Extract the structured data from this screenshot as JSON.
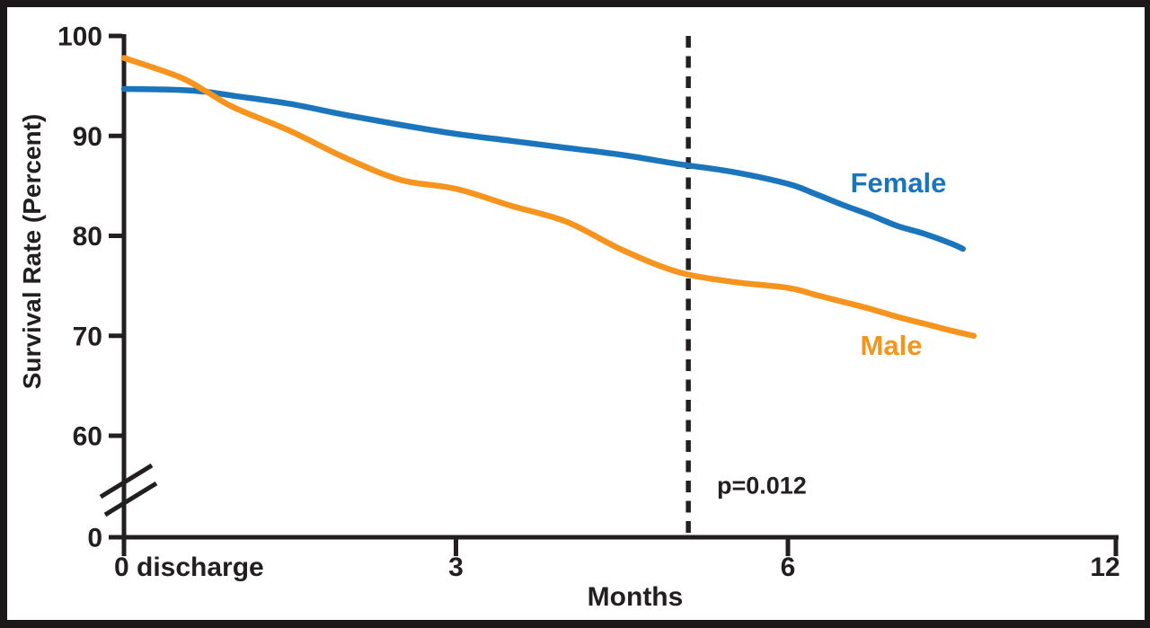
{
  "figure": {
    "border_color": "#1c181a",
    "background": "#ffffff",
    "text_color": "#231f20"
  },
  "chart_data": {
    "type": "line",
    "title": "",
    "xlabel": "Months",
    "ylabel": "Survival Rate (Percent)",
    "x_ticks": [
      {
        "value": 0,
        "label": "0 discharge"
      },
      {
        "value": 3,
        "label": "3"
      },
      {
        "value": 6,
        "label": "6"
      },
      {
        "value": 12,
        "label": "12"
      }
    ],
    "y_ticks": [
      {
        "value": 100,
        "label": "100"
      },
      {
        "value": 90,
        "label": "90"
      },
      {
        "value": 80,
        "label": "80"
      },
      {
        "value": 70,
        "label": "70"
      },
      {
        "value": 60,
        "label": "60"
      },
      {
        "value": 0,
        "label": "0"
      }
    ],
    "ylim_display": [
      60,
      100
    ],
    "y_axis_break": true,
    "x_scale": "equal-tick-spacing (0,3,6,12 evenly spaced)",
    "grid": false,
    "legend_position": "inline-right",
    "reference_line": {
      "x_month": 5.1,
      "style": "dashed",
      "label": "p=0.012"
    },
    "points_format": "[month, survival_percent]",
    "series": [
      {
        "name": "Female",
        "color": "#1b75bc",
        "points": [
          [
            0,
            94.7
          ],
          [
            0.5,
            94.6
          ],
          [
            0.75,
            94.4
          ],
          [
            1,
            94.0
          ],
          [
            1.5,
            93.2
          ],
          [
            2,
            92.1
          ],
          [
            2.5,
            91.1
          ],
          [
            3,
            90.2
          ],
          [
            3.5,
            89.5
          ],
          [
            4,
            88.8
          ],
          [
            4.5,
            88.1
          ],
          [
            5,
            87.2
          ],
          [
            5.5,
            86.4
          ],
          [
            6,
            85.2
          ],
          [
            6.5,
            84.2
          ],
          [
            7,
            83.1
          ],
          [
            7.5,
            82.1
          ],
          [
            8,
            81.0
          ],
          [
            8.5,
            80.2
          ],
          [
            9,
            79.2
          ],
          [
            9.2,
            78.7
          ]
        ]
      },
      {
        "name": "Male",
        "color": "#f7941e",
        "points": [
          [
            0,
            97.8
          ],
          [
            0.5,
            95.9
          ],
          [
            0.75,
            94.4
          ],
          [
            1,
            92.8
          ],
          [
            1.5,
            90.5
          ],
          [
            2,
            87.8
          ],
          [
            2.5,
            85.6
          ],
          [
            3,
            84.7
          ],
          [
            3.5,
            83.0
          ],
          [
            4,
            81.4
          ],
          [
            4.5,
            78.6
          ],
          [
            5,
            76.4
          ],
          [
            5.5,
            75.4
          ],
          [
            6,
            74.8
          ],
          [
            6.5,
            74.1
          ],
          [
            7,
            73.4
          ],
          [
            7.5,
            72.7
          ],
          [
            8,
            71.9
          ],
          [
            8.5,
            71.2
          ],
          [
            9,
            70.5
          ],
          [
            9.4,
            70.0
          ]
        ]
      }
    ]
  }
}
